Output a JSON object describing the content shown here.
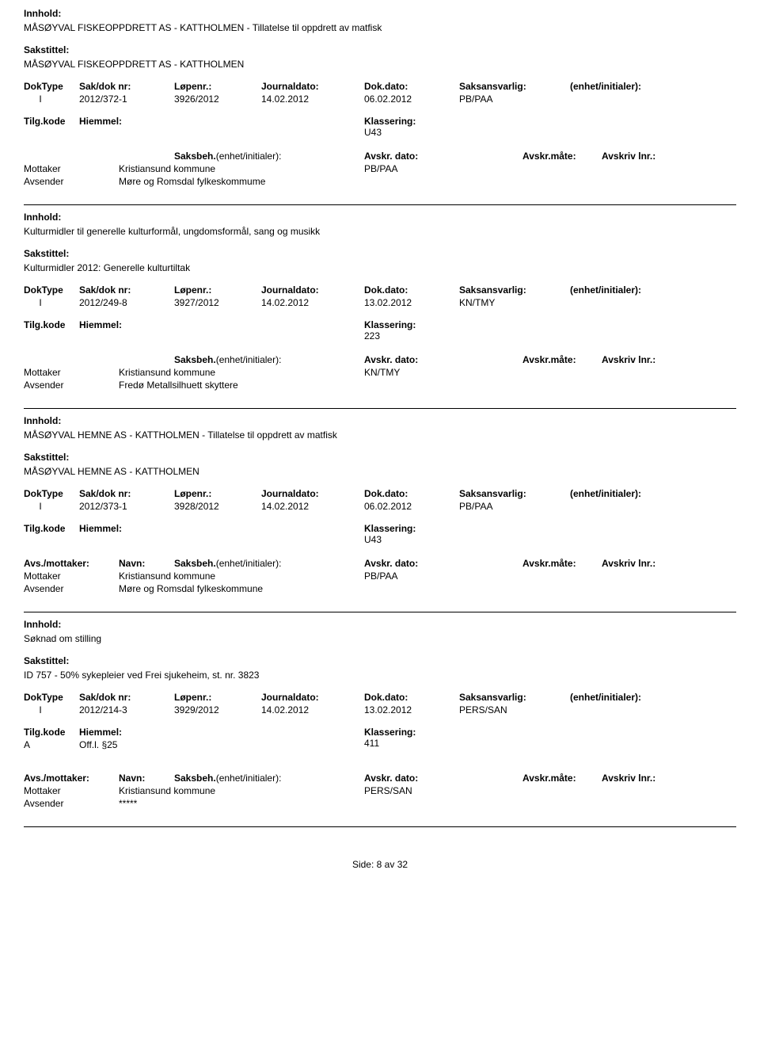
{
  "labels": {
    "innhold": "Innhold:",
    "sakstittel": "Sakstittel:",
    "doktype": "DokType",
    "sakdoknr": "Sak/dok nr:",
    "lopenr": "Løpenr.:",
    "journaldato": "Journaldato:",
    "dokdato": "Dok.dato:",
    "saksansvarlig": "Saksansvarlig:",
    "enhetinitialer": "(enhet/initialer):",
    "tilgkode": "Tilg.kode",
    "hjemmel": "Hiemmel:",
    "klassering": "Klassering:",
    "avsmottaker": "Avs./mottaker:",
    "navn": "Navn:",
    "saksbeh": "Saksbeh.",
    "enhetinit2": "(enhet/initialer):",
    "avskrdato": "Avskr. dato:",
    "avskrmate": "Avskr.måte:",
    "avskrivlnr": "Avskriv lnr.:",
    "mottaker": "Mottaker",
    "avsender": "Avsender",
    "side": "Side:",
    "av": "av"
  },
  "records": [
    {
      "innhold": "MÅSØYVAL FISKEOPPDRETT AS - KATTHOLMEN - Tillatelse til oppdrett av matfisk",
      "sakstittel": "MÅSØYVAL FISKEOPPDRETT AS - KATTHOLMEN",
      "doktype": "I",
      "sakdoknr": "2012/372-1",
      "lopenr": "3926/2012",
      "journaldato": "14.02.2012",
      "dokdato": "06.02.2012",
      "saksansvarlig": "PB/PAA",
      "tilgkode": "",
      "hjemmel": "",
      "klassering": "U43",
      "showAvsMottakerLabels": false,
      "mottaker": "Kristiansund kommune",
      "mottakerSaksbeh": "PB/PAA",
      "avsender": "Møre og Romsdal fylkeskommume"
    },
    {
      "innhold": "Kulturmidler til generelle kulturformål, ungdomsformål, sang og musikk",
      "sakstittel": "Kulturmidler 2012: Generelle kulturtiltak",
      "doktype": "I",
      "sakdoknr": "2012/249-8",
      "lopenr": "3927/2012",
      "journaldato": "14.02.2012",
      "dokdato": "13.02.2012",
      "saksansvarlig": "KN/TMY",
      "tilgkode": "",
      "hjemmel": "",
      "klassering": "223",
      "showAvsMottakerLabels": false,
      "mottaker": "Kristiansund kommune",
      "mottakerSaksbeh": "KN/TMY",
      "avsender": "Fredø Metallsilhuett skyttere"
    },
    {
      "innhold": "MÅSØYVAL HEMNE AS - KATTHOLMEN - Tillatelse til oppdrett av matfisk",
      "sakstittel": "MÅSØYVAL HEMNE AS - KATTHOLMEN",
      "doktype": "I",
      "sakdoknr": "2012/373-1",
      "lopenr": "3928/2012",
      "journaldato": "14.02.2012",
      "dokdato": "06.02.2012",
      "saksansvarlig": "PB/PAA",
      "tilgkode": "",
      "hjemmel": "",
      "klassering": "U43",
      "showAvsMottakerLabels": true,
      "mottaker": "Kristiansund kommune",
      "mottakerSaksbeh": "PB/PAA",
      "avsender": "Møre og Romsdal fylkeskommune"
    },
    {
      "innhold": "Søknad om stilling",
      "sakstittel": "ID 757 - 50% sykepleier ved Frei sjukeheim, st. nr. 3823",
      "doktype": "I",
      "sakdoknr": "2012/214-3",
      "lopenr": "3929/2012",
      "journaldato": "14.02.2012",
      "dokdato": "13.02.2012",
      "saksansvarlig": "PERS/SAN",
      "tilgkode": "A",
      "hjemmel": "Off.l. §25",
      "klassering": "411",
      "showAvsMottakerLabels": true,
      "mottaker": "Kristiansund kommune",
      "mottakerSaksbeh": "PERS/SAN",
      "avsender": "*****"
    }
  ],
  "footer": {
    "page": "8",
    "total": "32"
  }
}
